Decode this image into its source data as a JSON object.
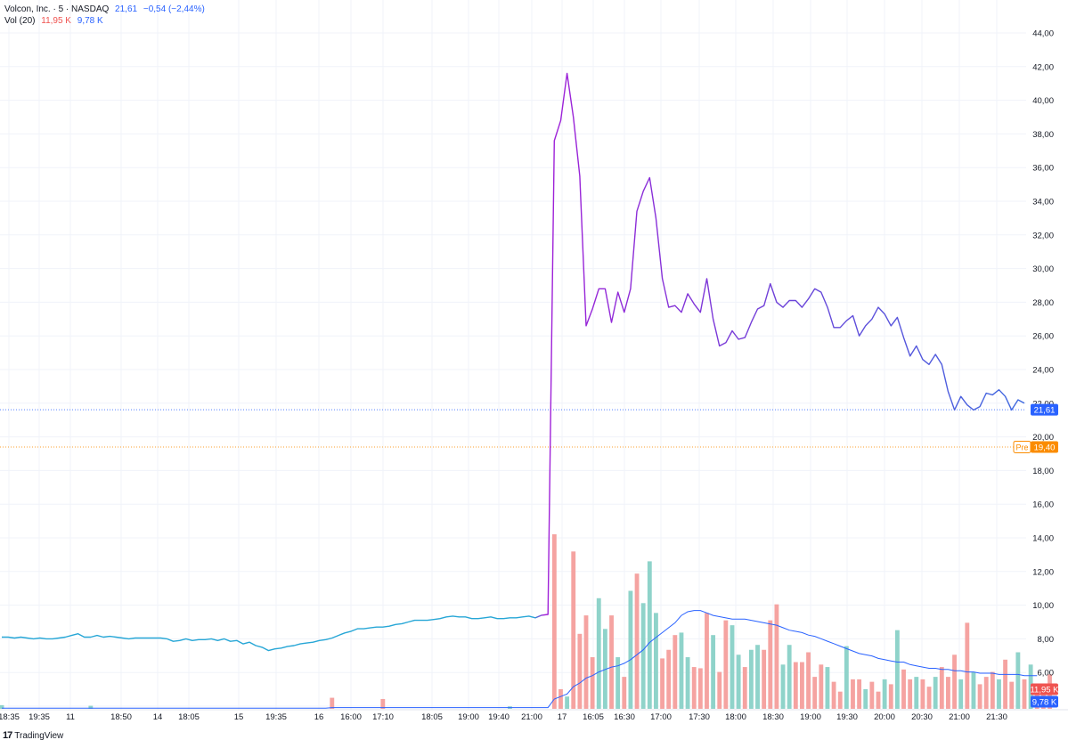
{
  "legend": {
    "symbol": "Volcon, Inc. · 5 · NASDAQ",
    "last": "21,61",
    "change": "−0,54 (−2,44%)",
    "vol_label": "Vol (20)",
    "vol_value": "11,95 K",
    "vol_ma": "9,78 K"
  },
  "badges": {
    "last_price": "21,61",
    "pre_label": "Pre",
    "pre_price": "19,40",
    "volume": "11,95 K",
    "volume_ma": "9,78 K"
  },
  "brand": {
    "mark": "17",
    "name": "TradingView"
  },
  "colors": {
    "up": "#26a69a",
    "down": "#ef5350",
    "vol_up": "#8fd3ca",
    "vol_down": "#f5a3a1",
    "price_line_start": "#1e88e5",
    "price_line_peak": "#9c27b0",
    "price_line_end": "#3f51b5",
    "premarket": "#fb8c00",
    "last_price": "#2962ff"
  },
  "chart_data": {
    "type": "line",
    "title": "Volcon, Inc. · 5 · NASDAQ",
    "price_axis": [
      "44,00",
      "42,00",
      "40,00",
      "38,00",
      "36,00",
      "34,00",
      "32,00",
      "30,00",
      "28,00",
      "26,00",
      "24,00",
      "22,00",
      "20,00",
      "18,00",
      "16,00",
      "14,00",
      "12,00",
      "10,00",
      "8,00",
      "6,00",
      "4,00"
    ],
    "ylim": [
      4,
      44
    ],
    "time_axis": [
      "18:35",
      "19:35",
      "11",
      "18:50",
      "14",
      "18:05",
      "15",
      "19:35",
      "16",
      "16:00",
      "17:10",
      "18:05",
      "19:00",
      "19:40",
      "21:00",
      "17",
      "16:05",
      "16:30",
      "17:00",
      "17:30",
      "18:00",
      "18:30",
      "19:00",
      "19:30",
      "20:00",
      "20:30",
      "21:00",
      "21:30"
    ],
    "grid": true,
    "price_series": {
      "name": "Volcon, Inc.",
      "values": [
        8.1,
        8.1,
        8.05,
        8.1,
        8.05,
        8.0,
        8.05,
        8.0,
        8.0,
        8.05,
        8.1,
        8.2,
        8.3,
        8.1,
        8.1,
        8.2,
        8.1,
        8.15,
        8.1,
        8.05,
        8.0,
        8.05,
        8.05,
        8.05,
        8.05,
        8.05,
        8.0,
        7.85,
        7.9,
        8.0,
        7.9,
        7.95,
        7.95,
        8.0,
        7.9,
        8.0,
        7.85,
        7.9,
        7.7,
        7.8,
        7.6,
        7.5,
        7.3,
        7.4,
        7.45,
        7.55,
        7.6,
        7.7,
        7.75,
        7.8,
        7.9,
        7.95,
        8.05,
        8.2,
        8.35,
        8.45,
        8.6,
        8.6,
        8.65,
        8.7,
        8.7,
        8.75,
        8.85,
        8.9,
        9.0,
        9.1,
        9.1,
        9.1,
        9.15,
        9.2,
        9.3,
        9.35,
        9.3,
        9.3,
        9.2,
        9.2,
        9.25,
        9.3,
        9.2,
        9.2,
        9.25,
        9.25,
        9.3,
        9.35,
        9.25,
        9.4,
        9.45,
        37.6,
        38.8,
        41.6,
        39.0,
        35.5,
        26.6,
        27.6,
        28.8,
        28.8,
        26.8,
        28.6,
        27.4,
        28.8,
        33.4,
        34.6,
        35.4,
        33.0,
        29.4,
        27.7,
        27.8,
        27.4,
        28.5,
        27.9,
        27.4,
        29.4,
        27.0,
        25.4,
        25.6,
        26.3,
        25.8,
        25.9,
        26.8,
        27.6,
        27.8,
        29.1,
        28.0,
        27.7,
        28.1,
        28.1,
        27.7,
        28.2,
        28.8,
        28.6,
        27.7,
        26.5,
        26.5,
        26.9,
        27.2,
        26.0,
        26.6,
        27.0,
        27.7,
        27.3,
        26.6,
        27.1,
        25.9,
        24.8,
        25.4,
        24.6,
        24.3,
        24.9,
        24.3,
        22.7,
        21.6,
        22.4,
        21.9,
        21.6,
        21.8,
        22.6,
        22.5,
        22.8,
        22.4,
        21.6,
        22.2,
        22.0
      ]
    },
    "volume_series": {
      "name": "Vol (20)",
      "values": [
        0.3,
        0,
        0,
        0,
        0,
        0,
        0,
        0,
        0,
        0,
        0,
        0,
        0,
        0,
        0.25,
        0,
        0,
        0,
        0,
        0,
        0,
        0,
        0,
        0,
        0,
        0,
        0,
        0,
        0,
        0,
        0,
        0,
        0,
        0,
        0,
        0,
        0,
        0,
        0,
        0,
        0,
        0,
        0,
        0,
        0,
        0,
        0,
        0,
        0,
        0,
        0,
        0,
        0.9,
        0,
        0,
        0,
        0,
        0,
        0,
        0,
        0.8,
        0,
        0,
        0,
        0,
        0,
        0,
        0,
        0,
        0,
        0,
        0,
        0,
        0,
        0,
        0,
        0,
        0,
        0,
        0,
        0.2,
        0,
        0,
        0,
        0,
        0,
        0,
        14.2,
        1.6,
        1.0,
        12.8,
        6.1,
        7.6,
        4.2,
        9.0,
        6.5,
        7.6,
        4.2,
        2.6,
        9.6,
        11.0,
        8.6,
        12.0,
        7.8,
        4.1,
        4.8,
        6.0,
        6.2,
        4.2,
        3.4,
        3.3,
        7.8,
        6.0,
        3.0,
        7.2,
        6.8,
        4.4,
        3.4,
        4.8,
        5.2,
        4.8,
        7.2,
        8.5,
        3.6,
        5.2,
        3.8,
        3.8,
        4.6,
        2.6,
        3.6,
        3.4,
        2.2,
        1.4,
        5.1,
        2.4,
        2.4,
        1.6,
        2.2,
        1.4,
        2.4,
        2.0,
        6.4,
        3.2,
        2.4,
        2.6,
        2.4,
        1.8,
        2.6,
        3.4,
        2.6,
        4.4,
        2.4,
        7.0,
        3.0,
        2.0,
        2.6,
        3.0,
        2.4,
        4.0,
        2.2,
        4.6,
        2.4,
        3.6,
        1.6,
        2.0,
        2.8
      ],
      "up": [
        1,
        1,
        1,
        1,
        1,
        1,
        1,
        1,
        1,
        1,
        1,
        1,
        1,
        1,
        1,
        1,
        1,
        1,
        1,
        1,
        1,
        1,
        1,
        1,
        1,
        1,
        1,
        1,
        1,
        1,
        1,
        1,
        1,
        1,
        1,
        1,
        1,
        1,
        1,
        1,
        1,
        1,
        1,
        1,
        1,
        1,
        1,
        1,
        1,
        1,
        1,
        1,
        0,
        1,
        1,
        1,
        1,
        1,
        1,
        1,
        0,
        1,
        1,
        1,
        1,
        1,
        1,
        1,
        1,
        1,
        1,
        1,
        1,
        1,
        1,
        1,
        1,
        1,
        1,
        1,
        1,
        1,
        1,
        1,
        1,
        1,
        1,
        0,
        0,
        1,
        0,
        0,
        0,
        0,
        1,
        1,
        0,
        1,
        0,
        1,
        0,
        1,
        1,
        1,
        0,
        0,
        0,
        1,
        1,
        0,
        0,
        0,
        1,
        0,
        0,
        1,
        1,
        0,
        1,
        1,
        0,
        0,
        0,
        1,
        1,
        0,
        0,
        0,
        0,
        0,
        1,
        0,
        0,
        1,
        0,
        0,
        1,
        0,
        0,
        1,
        0,
        1,
        0,
        0,
        1,
        0,
        0,
        1,
        0,
        0,
        0,
        1,
        0,
        1,
        0,
        0,
        0,
        1,
        0,
        0,
        1,
        0,
        1,
        0,
        0,
        0
      ]
    },
    "volume_ma_series": {
      "name": "Vol (20) MA",
      "values": [
        0.05,
        0.05,
        0.05,
        0.05,
        0.05,
        0.05,
        0.05,
        0.05,
        0.05,
        0.05,
        0.05,
        0.05,
        0.05,
        0.05,
        0.05,
        0.05,
        0.05,
        0.05,
        0.05,
        0.05,
        0.05,
        0.05,
        0.05,
        0.05,
        0.05,
        0.05,
        0.05,
        0.05,
        0.05,
        0.05,
        0.05,
        0.05,
        0.05,
        0.05,
        0.05,
        0.05,
        0.05,
        0.05,
        0.05,
        0.05,
        0.05,
        0.05,
        0.05,
        0.05,
        0.05,
        0.05,
        0.05,
        0.05,
        0.05,
        0.05,
        0.05,
        0.05,
        0.1,
        0.1,
        0.1,
        0.1,
        0.1,
        0.1,
        0.1,
        0.1,
        0.1,
        0.1,
        0.1,
        0.1,
        0.1,
        0.1,
        0.1,
        0.1,
        0.1,
        0.1,
        0.1,
        0.1,
        0.1,
        0.1,
        0.1,
        0.1,
        0.1,
        0.1,
        0.1,
        0.1,
        0.1,
        0.1,
        0.1,
        0.1,
        0.1,
        0.1,
        0.1,
        0.8,
        1.0,
        1.2,
        1.8,
        2.1,
        2.5,
        2.7,
        3.0,
        3.2,
        3.4,
        3.5,
        3.7,
        4.0,
        4.4,
        4.8,
        5.4,
        5.8,
        6.2,
        6.6,
        7.0,
        7.6,
        7.9,
        8.0,
        8.0,
        7.8,
        7.6,
        7.5,
        7.4,
        7.3,
        7.3,
        7.3,
        7.2,
        7.1,
        7.0,
        6.9,
        6.8,
        6.6,
        6.4,
        6.3,
        6.2,
        6.0,
        5.9,
        5.7,
        5.5,
        5.3,
        5.1,
        4.9,
        4.7,
        4.5,
        4.4,
        4.3,
        4.1,
        4.0,
        3.9,
        3.8,
        3.8,
        3.6,
        3.5,
        3.4,
        3.3,
        3.3,
        3.2,
        3.2,
        3.1,
        3.1,
        3.0,
        3.0,
        2.9,
        2.9,
        2.9,
        2.8,
        2.8,
        2.8,
        2.8,
        2.7,
        2.7,
        2.7
      ]
    },
    "price_levels": {
      "last": 21.61,
      "premarket": 19.4
    }
  }
}
